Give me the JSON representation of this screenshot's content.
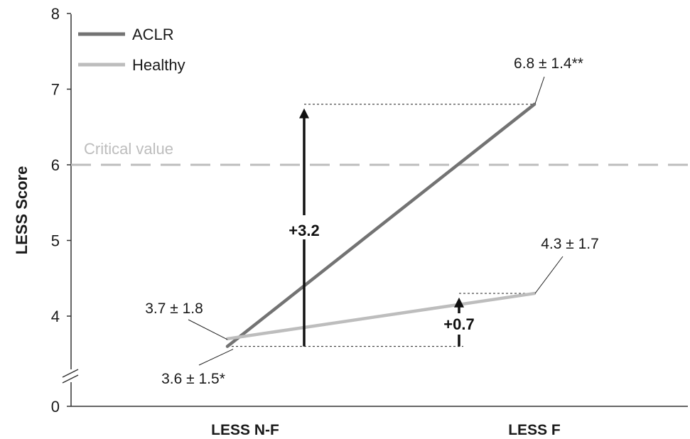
{
  "chart_data": {
    "type": "line",
    "categories": [
      "LESS N-F",
      "LESS F"
    ],
    "series": [
      {
        "name": "ACLR",
        "values": [
          3.6,
          6.8
        ],
        "color": "#737373"
      },
      {
        "name": "Healthy",
        "values": [
          3.7,
          4.3
        ],
        "color": "#bdbdbd"
      }
    ],
    "ylabel": "LESS Score",
    "xlabel": "",
    "ylim": [
      0,
      8
    ],
    "axis_break": true,
    "y_ticks": [
      "0",
      "4",
      "5",
      "6",
      "7",
      "8"
    ],
    "data_labels": [
      "3.6 ± 1.5*",
      "6.8 ± 1.4**",
      "3.7 ± 1.8",
      "4.3 ± 1.7"
    ],
    "reference_line": {
      "label": "Critical value",
      "value": 6,
      "color": "#bdbdbd",
      "style": "dashed"
    },
    "differences": [
      {
        "label": "+3.2",
        "from": 3.6,
        "to": 6.8
      },
      {
        "label": "+0.7",
        "from": 3.6,
        "to": 4.3
      }
    ],
    "legend_position": "top-left",
    "grid": false
  }
}
